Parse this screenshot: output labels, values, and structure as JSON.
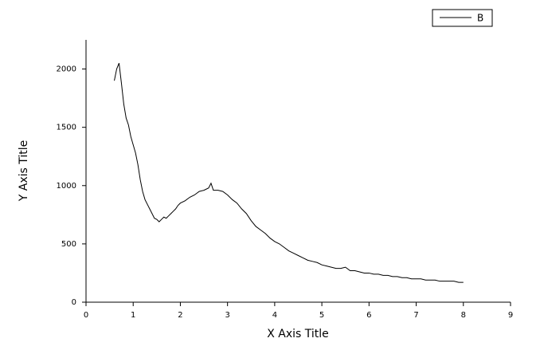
{
  "chart_data": {
    "type": "line",
    "x_label": "X Axis Title",
    "y_label": "Y Axis Title",
    "x": [
      0.6,
      0.65,
      0.7,
      0.75,
      0.8,
      0.85,
      0.9,
      0.95,
      1.0,
      1.05,
      1.1,
      1.15,
      1.2,
      1.25,
      1.3,
      1.35,
      1.4,
      1.45,
      1.5,
      1.55,
      1.6,
      1.65,
      1.7,
      1.75,
      1.8,
      1.85,
      1.9,
      1.95,
      2.0,
      2.1,
      2.2,
      2.3,
      2.4,
      2.5,
      2.6,
      2.65,
      2.7,
      2.8,
      2.9,
      3.0,
      3.1,
      3.2,
      3.3,
      3.4,
      3.5,
      3.6,
      3.7,
      3.8,
      3.9,
      4.0,
      4.1,
      4.2,
      4.3,
      4.4,
      4.5,
      4.6,
      4.7,
      4.8,
      4.9,
      5.0,
      5.1,
      5.2,
      5.3,
      5.4,
      5.5,
      5.6,
      5.7,
      5.8,
      5.9,
      6.0,
      6.1,
      6.2,
      6.3,
      6.4,
      6.5,
      6.6,
      6.7,
      6.8,
      6.9,
      7.0,
      7.1,
      7.2,
      7.3,
      7.4,
      7.5,
      7.6,
      7.7,
      7.8,
      7.9,
      8.0
    ],
    "series": [
      {
        "name": "B",
        "color": "#000000",
        "values": [
          1900,
          2000,
          2050,
          1880,
          1700,
          1580,
          1520,
          1420,
          1350,
          1280,
          1180,
          1050,
          950,
          880,
          840,
          800,
          760,
          720,
          710,
          690,
          710,
          730,
          720,
          740,
          760,
          780,
          800,
          830,
          850,
          870,
          900,
          920,
          950,
          960,
          980,
          1020,
          960,
          960,
          950,
          920,
          880,
          850,
          800,
          760,
          700,
          650,
          620,
          590,
          550,
          520,
          500,
          470,
          440,
          420,
          400,
          380,
          360,
          350,
          340,
          320,
          310,
          300,
          290,
          290,
          300,
          270,
          270,
          260,
          250,
          250,
          240,
          240,
          230,
          230,
          220,
          220,
          210,
          210,
          200,
          200,
          200,
          190,
          190,
          190,
          180,
          180,
          180,
          180,
          170,
          170
        ]
      }
    ],
    "xlim": [
      0,
      9
    ],
    "xticks": [
      0,
      1,
      2,
      3,
      4,
      5,
      6,
      7,
      8,
      9
    ],
    "ylim": [
      0,
      2250
    ],
    "yticks": [
      0,
      500,
      1000,
      1500,
      2000
    ],
    "grid": false,
    "legend": "top-right"
  }
}
